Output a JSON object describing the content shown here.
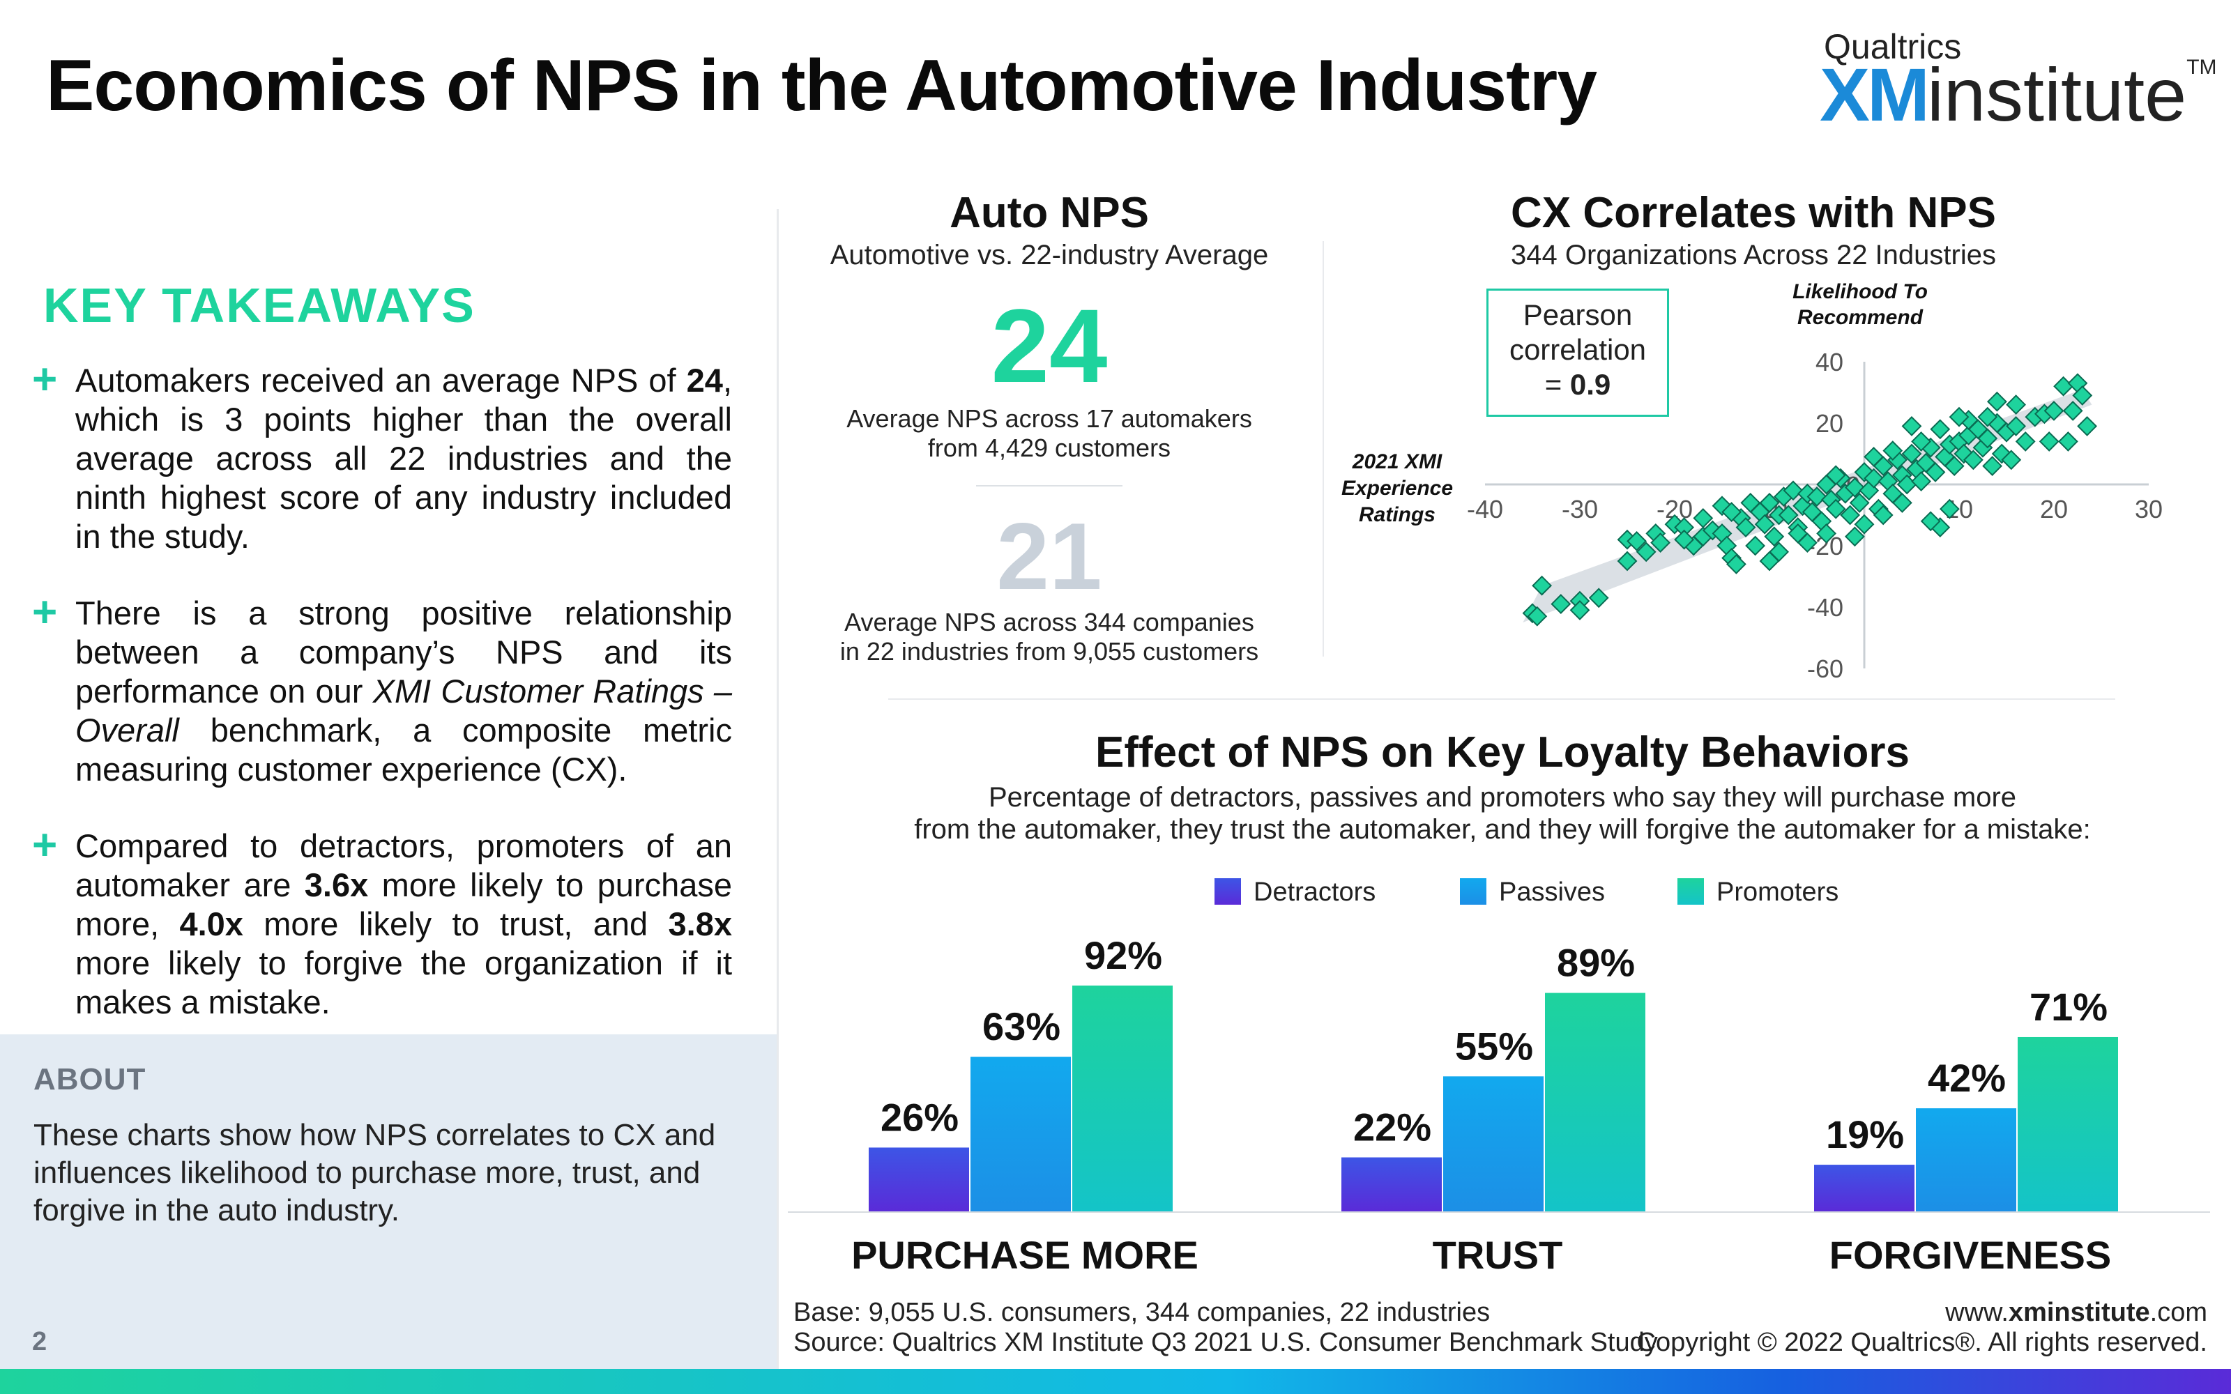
{
  "header": {
    "title": "Economics of NPS in the Automotive Industry",
    "logo_top": "Qualtrics",
    "logo_xm": "XM",
    "logo_institute": "institute",
    "logo_tm": "TM"
  },
  "takeaways": {
    "heading": "KEY TAKEAWAYS",
    "plus": "+",
    "t1": {
      "a": "Automakers received an average NPS of ",
      "b": "24",
      "c": ", which is 3 points higher than the overall average across all 22 industries and the ninth highest score of any industry included in the study."
    },
    "t2": {
      "a": "There is a strong positive relationship between a company’s NPS and its performance on our ",
      "b": "XMI Customer Ratings – Overall",
      "c": " benchmark, a composite metric measuring customer experience (CX)."
    },
    "t3": {
      "a": "Compared to detractors, promoters of an automaker are ",
      "b": "3.6x",
      "c": " more likely to purchase more, ",
      "d": "4.0x",
      "e": " more likely to trust, and ",
      "f": "3.8x",
      "g": " more likely to forgive the organization if it makes a mistake."
    }
  },
  "about": {
    "heading": "ABOUT",
    "text": "These charts show how NPS correlates to CX and influences likelihood to purchase more, trust, and forgive in the auto industry."
  },
  "page_number": "2",
  "auto_nps": {
    "title": "Auto NPS",
    "subtitle": "Automotive vs. 22-industry Average",
    "auto_value": "24",
    "auto_caption_1": "Average NPS across 17 automakers",
    "auto_caption_2": "from 4,429 customers",
    "industry_value": "21",
    "industry_caption_1": "Average NPS across 344 companies",
    "industry_caption_2": "in 22 industries from 9,055 customers"
  },
  "scatter": {
    "title": "CX Correlates with NPS",
    "subtitle": "344 Organizations Across 22 Industries",
    "pearson_1": "Pearson",
    "pearson_2": "correlation",
    "pearson_3": "= ",
    "pearson_value": "0.9"
  },
  "bars": {
    "title": "Effect of NPS on Key Loyalty Behaviors",
    "subtitle_1": "Percentage of detractors, passives and promoters who say they will purchase more",
    "subtitle_2": "from the automaker, they trust the automaker, and they will forgive the automaker for a mistake:"
  },
  "chart_data": [
    {
      "type": "scatter",
      "title": "CX Correlates with NPS",
      "subtitle": "344 Organizations Across 22 Industries",
      "xlabel": "2021 XMI Experience Ratings",
      "ylabel": "Likelihood To Recommend",
      "xlim": [
        -40,
        30
      ],
      "ylim": [
        -60,
        40
      ],
      "xticks": [
        -40,
        -30,
        -20,
        -10,
        0,
        10,
        20,
        30
      ],
      "yticks": [
        -60,
        -40,
        -20,
        0,
        20,
        40
      ],
      "pearson_correlation": 0.9,
      "marker_color": "#1ed39d",
      "trend_band_color": "#cfd6dc",
      "points": [
        [
          -35,
          -42
        ],
        [
          -34.5,
          -43
        ],
        [
          -34,
          -33
        ],
        [
          -32,
          -39
        ],
        [
          -30,
          -38
        ],
        [
          -28,
          -37
        ],
        [
          -25,
          -18
        ],
        [
          -24,
          -18.5
        ],
        [
          -23,
          -22
        ],
        [
          -22,
          -16
        ],
        [
          -21.5,
          -19
        ],
        [
          -20,
          -13
        ],
        [
          -19,
          -14
        ],
        [
          -18,
          -20
        ],
        [
          -17,
          -17
        ],
        [
          -16,
          -15
        ],
        [
          -15,
          -16
        ],
        [
          -14.5,
          -20
        ],
        [
          -14,
          -24
        ],
        [
          -13.5,
          -26
        ],
        [
          -13,
          -11
        ],
        [
          -12.5,
          -14
        ],
        [
          -12,
          -6
        ],
        [
          -11.5,
          -20
        ],
        [
          -11,
          -9
        ],
        [
          -10.5,
          -13
        ],
        [
          -10,
          -6
        ],
        [
          -9.5,
          -17
        ],
        [
          -9,
          -10
        ],
        [
          -8.5,
          -4
        ],
        [
          -8,
          -10
        ],
        [
          -7.5,
          -2
        ],
        [
          -7,
          -14
        ],
        [
          -6.5,
          -7
        ],
        [
          -6,
          -3
        ],
        [
          -5.5,
          -9
        ],
        [
          -5,
          -4
        ],
        [
          -4.5,
          -12
        ],
        [
          -4,
          0
        ],
        [
          -3.5,
          -5
        ],
        [
          -3,
          -8
        ],
        [
          -2.5,
          2
        ],
        [
          -2,
          -3
        ],
        [
          -1.5,
          -10
        ],
        [
          -1,
          -1
        ],
        [
          -0.5,
          -6
        ],
        [
          0,
          4
        ],
        [
          0.5,
          -2
        ],
        [
          1,
          2
        ],
        [
          1.5,
          -8
        ],
        [
          2,
          6
        ],
        [
          2.5,
          1
        ],
        [
          3,
          -3
        ],
        [
          3.5,
          8
        ],
        [
          4,
          3
        ],
        [
          4.5,
          0
        ],
        [
          5,
          10
        ],
        [
          5.5,
          5
        ],
        [
          6,
          1
        ],
        [
          6.5,
          7
        ],
        [
          7,
          12
        ],
        [
          7.5,
          4
        ],
        [
          8,
          -14
        ],
        [
          8.5,
          9
        ],
        [
          9,
          13
        ],
        [
          9.5,
          6
        ],
        [
          10,
          14
        ],
        [
          10.5,
          10
        ],
        [
          11,
          16
        ],
        [
          11.5,
          8
        ],
        [
          12,
          18
        ],
        [
          12.5,
          12
        ],
        [
          13,
          15
        ],
        [
          13.5,
          6
        ],
        [
          14,
          20
        ],
        [
          14.5,
          10
        ],
        [
          15,
          17
        ],
        [
          15.5,
          8
        ],
        [
          16,
          19
        ],
        [
          17,
          14
        ],
        [
          18,
          22
        ],
        [
          19,
          23
        ],
        [
          19.5,
          14
        ],
        [
          20,
          24
        ],
        [
          21,
          32
        ],
        [
          21.5,
          14
        ],
        [
          22,
          24
        ],
        [
          22.5,
          33
        ],
        [
          23,
          29
        ],
        [
          23.5,
          19
        ],
        [
          -30,
          -41
        ],
        [
          -25,
          -25
        ],
        [
          -19,
          -18
        ],
        [
          -17,
          -11
        ],
        [
          -15,
          -7
        ],
        [
          -9,
          -22
        ],
        [
          -7,
          -16
        ],
        [
          -4,
          -16
        ],
        [
          -3,
          3
        ],
        [
          1,
          9
        ],
        [
          3,
          11
        ],
        [
          6,
          14
        ],
        [
          8,
          18
        ],
        [
          11,
          21
        ],
        [
          13,
          22
        ],
        [
          16,
          26
        ],
        [
          7,
          -12
        ],
        [
          9,
          -8
        ],
        [
          -1,
          -17
        ],
        [
          2,
          -10
        ],
        [
          -14,
          -9
        ],
        [
          -10,
          -25
        ],
        [
          -6,
          -19
        ],
        [
          0,
          -13
        ],
        [
          4,
          -6
        ],
        [
          5,
          19
        ],
        [
          10,
          22
        ],
        [
          14,
          27
        ]
      ]
    },
    {
      "type": "bar",
      "title": "Effect of NPS on Key Loyalty Behaviors",
      "categories": [
        "PURCHASE MORE",
        "TRUST",
        "FORGIVENESS"
      ],
      "series": [
        {
          "name": "Detractors",
          "values": [
            26,
            22,
            19
          ],
          "labels": [
            "26%",
            "22%",
            "19%"
          ],
          "color": "#5a2bd8"
        },
        {
          "name": "Passives",
          "values": [
            63,
            55,
            42
          ],
          "labels": [
            "63%",
            "55%",
            "42%"
          ],
          "color": "#11b4e8"
        },
        {
          "name": "Promoters",
          "values": [
            92,
            89,
            71
          ],
          "labels": [
            "92%",
            "89%",
            "71%"
          ],
          "color": "#1ed39d"
        }
      ],
      "ylim": [
        0,
        100
      ],
      "legend": "top"
    }
  ],
  "footer": {
    "base": "Base: 9,055 U.S. consumers, 344 companies, 22 industries",
    "source": "Source: Qualtrics XM Institute Q3 2021 U.S. Consumer Benchmark Study",
    "url_pre": "www.",
    "url_bold": "xminstitute",
    "url_post": ".com",
    "copyright": "Copyright © 2022 Qualtrics®. All rights reserved."
  }
}
